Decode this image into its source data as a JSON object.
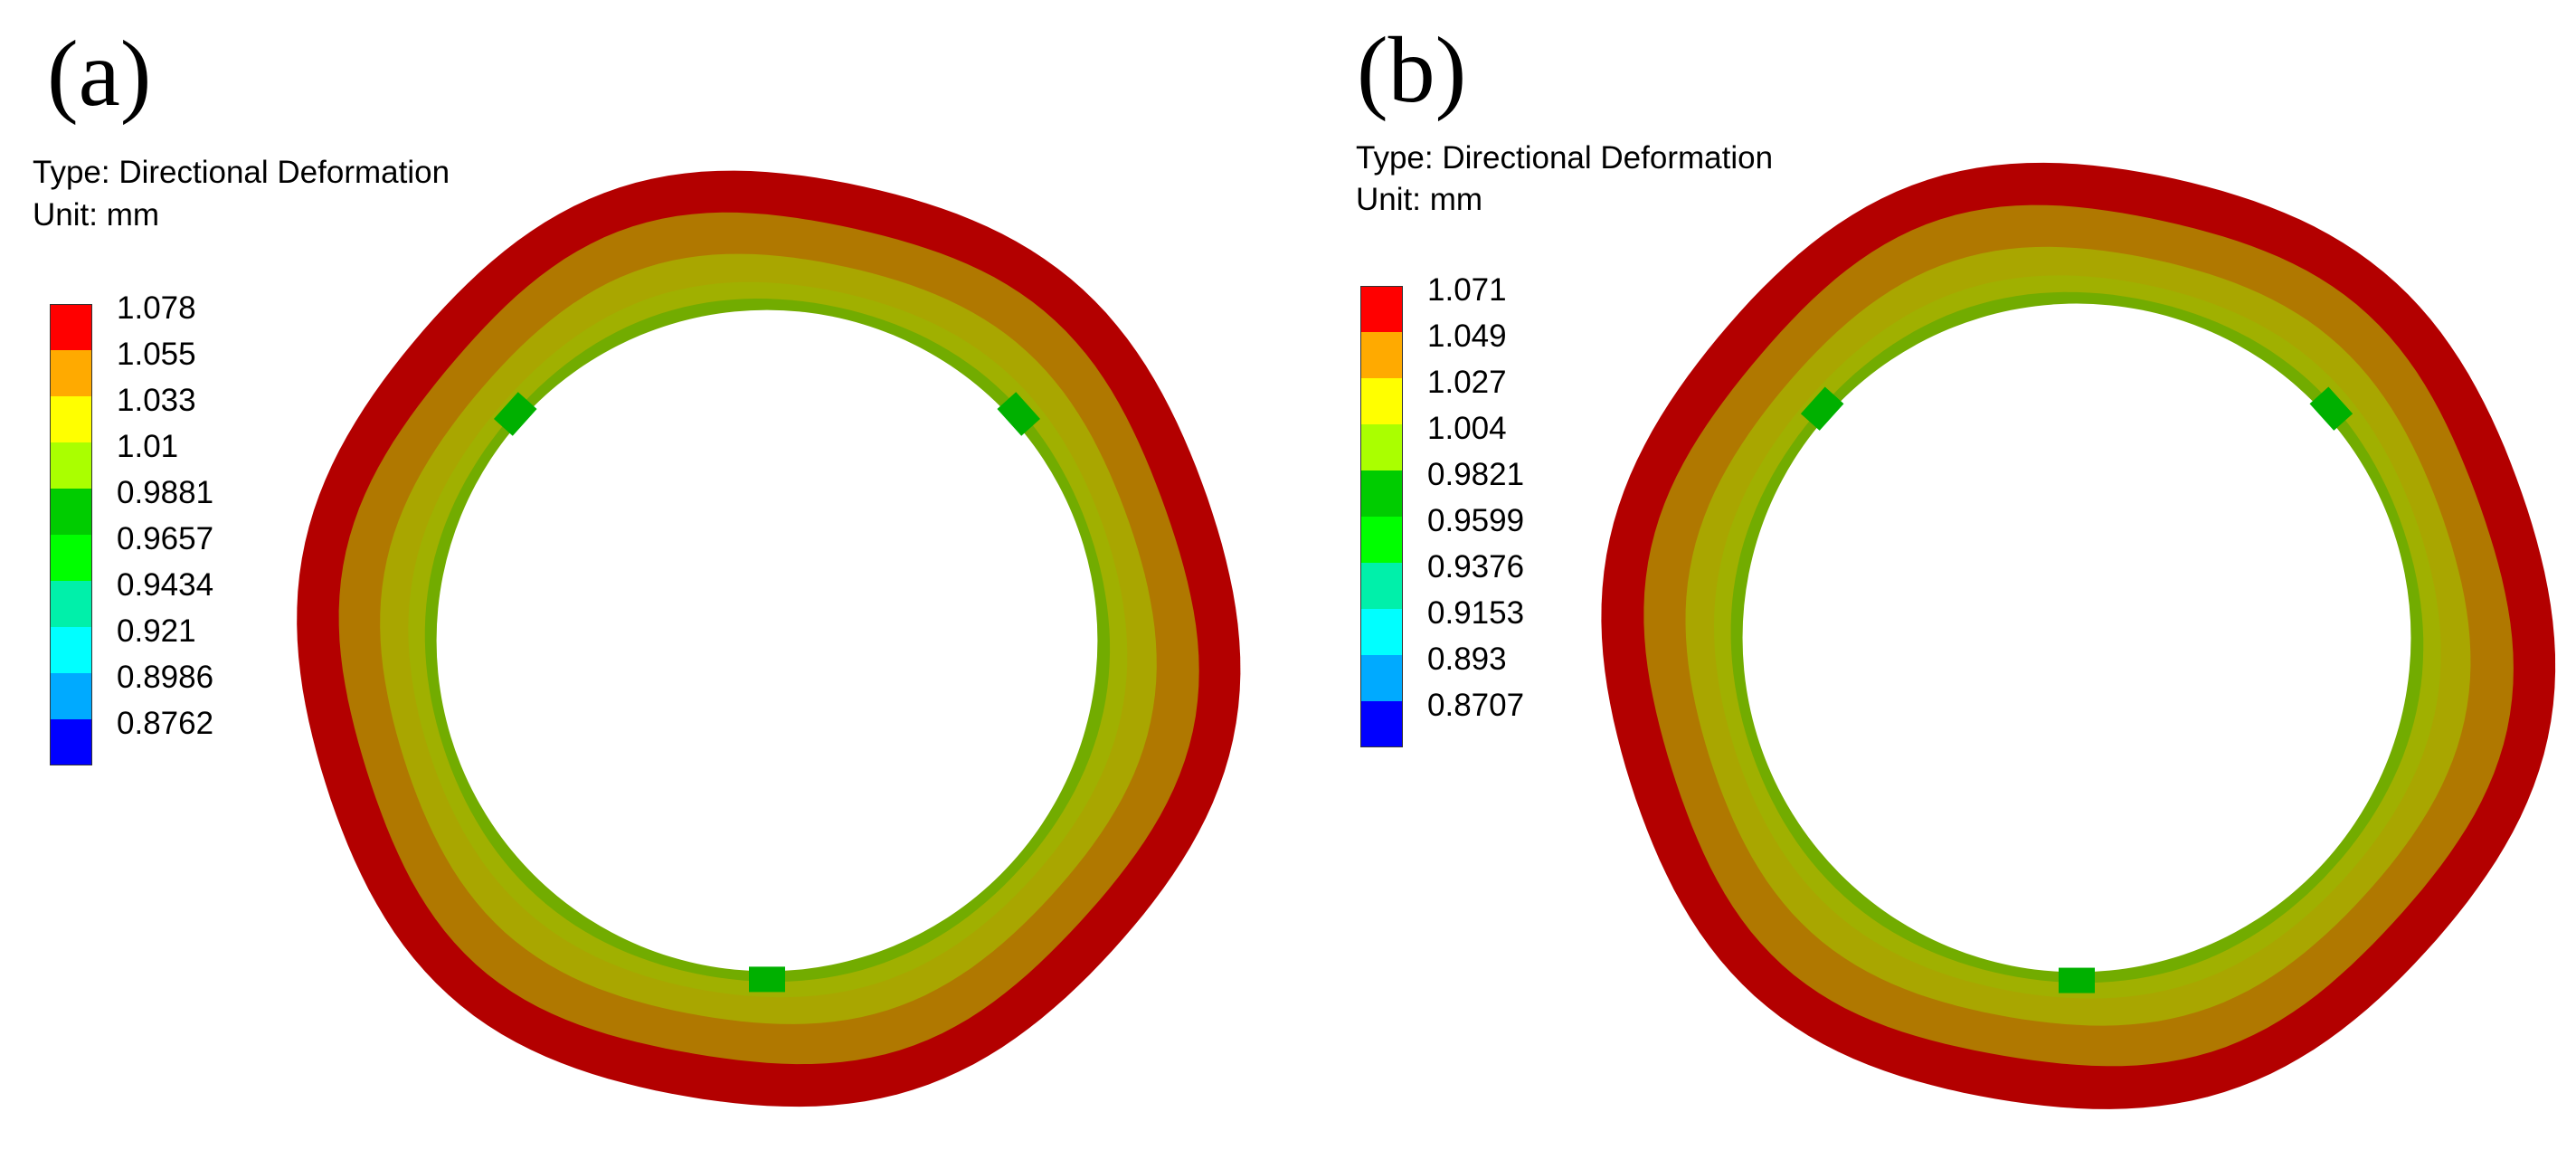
{
  "panels": [
    {
      "label": "(a)",
      "type_text": "Type: Directional Deformation",
      "unit_text": "Unit: mm",
      "legend": [
        {
          "value": "1.078",
          "color": "#ff0000"
        },
        {
          "value": "1.055",
          "color": "#ffaa00"
        },
        {
          "value": "1.033",
          "color": "#ffff00"
        },
        {
          "value": "1.01",
          "color": "#aaff00"
        },
        {
          "value": "0.9881",
          "color": "#00cc00"
        },
        {
          "value": "0.9657",
          "color": "#00ff00"
        },
        {
          "value": "0.9434",
          "color": "#00f0aa"
        },
        {
          "value": "0.921",
          "color": "#00ffff"
        },
        {
          "value": "0.8986",
          "color": "#00aaff"
        },
        {
          "value": "0.8762",
          "color": "#0000ff"
        }
      ]
    },
    {
      "label": "(b)",
      "type_text": "Type: Directional Deformation",
      "unit_text": "Unit: mm",
      "legend": [
        {
          "value": "1.071",
          "color": "#ff0000"
        },
        {
          "value": "1.049",
          "color": "#ffaa00"
        },
        {
          "value": "1.027",
          "color": "#ffff00"
        },
        {
          "value": "1.004",
          "color": "#aaff00"
        },
        {
          "value": "0.9821",
          "color": "#00cc00"
        },
        {
          "value": "0.9599",
          "color": "#00ff00"
        },
        {
          "value": "0.9376",
          "color": "#00f0aa"
        },
        {
          "value": "0.9153",
          "color": "#00ffff"
        },
        {
          "value": "0.893",
          "color": "#00aaff"
        },
        {
          "value": "0.8707",
          "color": "#0000ff"
        }
      ]
    }
  ],
  "ring_colors": {
    "outer": "#b30000",
    "band2": "#b07800",
    "band3": "#a9a600",
    "band4": "#a0b000",
    "inner": "#72ac00",
    "pad": "#00b000"
  }
}
